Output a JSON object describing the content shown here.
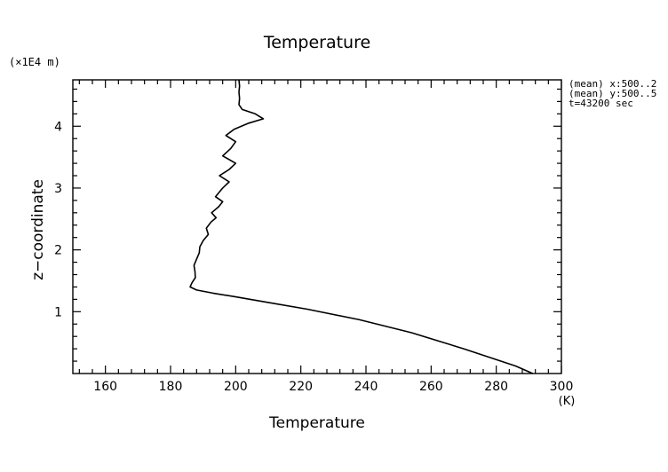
{
  "chart_data": {
    "type": "line",
    "title": "Temperature",
    "xlabel": "Temperature",
    "x_unit": "(K)",
    "ylabel": "z−coordinate",
    "y_unit": "(×1E4 m)",
    "xlim": [
      150,
      300
    ],
    "ylim": [
      0,
      4.75
    ],
    "x_ticks": [
      160,
      180,
      200,
      220,
      240,
      260,
      280,
      300
    ],
    "y_ticks": [
      1,
      2,
      3,
      4
    ],
    "grid": false,
    "annotations": [
      "(mean) x:500..2",
      "(mean) y:500..5",
      "t=43200 sec"
    ],
    "series": [
      {
        "points": [
          [
            291.2,
            0.0
          ],
          [
            286.0,
            0.12
          ],
          [
            270.0,
            0.4
          ],
          [
            254.0,
            0.66
          ],
          [
            238.0,
            0.87
          ],
          [
            222.0,
            1.04
          ],
          [
            210.0,
            1.15
          ],
          [
            200.0,
            1.24
          ],
          [
            193.0,
            1.3
          ],
          [
            188.0,
            1.35
          ],
          [
            186.0,
            1.4
          ],
          [
            186.6,
            1.47
          ],
          [
            187.6,
            1.55
          ],
          [
            187.5,
            1.65
          ],
          [
            187.2,
            1.75
          ],
          [
            188.0,
            1.85
          ],
          [
            188.8,
            1.95
          ],
          [
            189.0,
            2.05
          ],
          [
            190.0,
            2.15
          ],
          [
            191.6,
            2.25
          ],
          [
            191.0,
            2.35
          ],
          [
            192.4,
            2.45
          ],
          [
            194.0,
            2.52
          ],
          [
            192.6,
            2.6
          ],
          [
            194.8,
            2.7
          ],
          [
            196.0,
            2.78
          ],
          [
            193.8,
            2.86
          ],
          [
            196.0,
            3.0
          ],
          [
            198.0,
            3.1
          ],
          [
            195.0,
            3.2
          ],
          [
            198.0,
            3.3
          ],
          [
            200.0,
            3.4
          ],
          [
            196.0,
            3.52
          ],
          [
            198.5,
            3.64
          ],
          [
            200.0,
            3.75
          ],
          [
            197.0,
            3.85
          ],
          [
            199.5,
            3.95
          ],
          [
            204.0,
            4.05
          ],
          [
            208.5,
            4.12
          ],
          [
            206.0,
            4.2
          ],
          [
            202.0,
            4.27
          ],
          [
            201.0,
            4.35
          ],
          [
            201.2,
            4.45
          ],
          [
            201.0,
            4.55
          ],
          [
            201.2,
            4.65
          ],
          [
            201.0,
            4.75
          ]
        ]
      }
    ]
  }
}
